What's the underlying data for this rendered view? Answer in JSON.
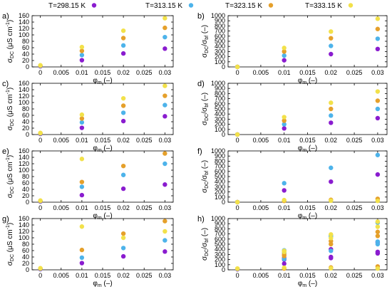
{
  "legend": {
    "entries": [
      {
        "label": "T=298.15 K",
        "color": "#8a1ccf"
      },
      {
        "label": "T=313.15 K",
        "color": "#4db3ea"
      },
      {
        "label": "T=323.15 K",
        "color": "#e5a02b"
      },
      {
        "label": "T=333.15 K",
        "color": "#f2e14a"
      }
    ]
  },
  "chart_data": [
    {
      "panel": "a)",
      "type": "scatter",
      "side": "left",
      "xlabel": {
        "base": "φ",
        "sub": "m",
        "rest": " (–)"
      },
      "ylabel": {
        "p1": "σ",
        "s1": "DC",
        "p2": " (μS cm",
        "sup": "-1",
        "p3": ")"
      },
      "xlim": [
        -0.002,
        0.032
      ],
      "ylim": [
        0,
        160
      ],
      "xticks": [
        "0",
        "0.005",
        "0.01",
        "0.015",
        "0.02",
        "0.025",
        "0.03"
      ],
      "yticks": [
        "0",
        "20",
        "40",
        "60",
        "80",
        "100",
        "120",
        "140",
        "160"
      ],
      "x": [
        0,
        0.01,
        0.02,
        0.03
      ],
      "series": [
        {
          "values": [
            2,
            21,
            42,
            57
          ]
        },
        {
          "values": [
            3,
            37,
            67,
            93
          ]
        },
        {
          "values": [
            4,
            50,
            90,
            122
          ]
        },
        {
          "values": [
            5,
            62,
            113,
            152
          ]
        }
      ]
    },
    {
      "panel": "b)",
      "type": "scatter",
      "side": "right",
      "xlabel": {
        "base": "φ",
        "sub": "m",
        "rest": " (–)"
      },
      "ylabel": {
        "p1": "σ",
        "s1": "DC",
        "p2": "/σ",
        "s2": "bf",
        "p3": " (–)"
      },
      "xlim": [
        -0.002,
        0.032
      ],
      "ylim": [
        0,
        1000
      ],
      "xticks": [
        "0",
        "0.005",
        "0.01",
        "0.015",
        "0.02",
        "0.025",
        "0.03"
      ],
      "yticks": [
        "0",
        "100",
        "200",
        "300",
        "400",
        "500",
        "600",
        "700",
        "800",
        "900",
        "1000"
      ],
      "x": [
        0,
        0.01,
        0.02,
        0.03
      ],
      "series": [
        {
          "values": [
            1,
            130,
            250,
            350
          ]
        },
        {
          "values": [
            1,
            220,
            410,
            550
          ]
        },
        {
          "values": [
            1,
            300,
            560,
            740
          ]
        },
        {
          "values": [
            1,
            370,
            690,
            940
          ]
        }
      ]
    },
    {
      "panel": "c)",
      "type": "scatter",
      "side": "left",
      "xlabel": {
        "base": "φ",
        "sub": "m",
        "rest": " (–)"
      },
      "ylabel": {
        "p1": "σ",
        "s1": "DC",
        "p2": " (μS cm",
        "sup": "-1",
        "p3": ")"
      },
      "xlim": [
        -0.002,
        0.032
      ],
      "ylim": [
        0,
        160
      ],
      "xticks": [
        "0",
        "0.005",
        "0.01",
        "0.015",
        "0.02",
        "0.025",
        "0.03"
      ],
      "yticks": [
        "0",
        "20",
        "40",
        "60",
        "80",
        "100",
        "120",
        "140",
        "160"
      ],
      "x": [
        0,
        0.01,
        0.02,
        0.03
      ],
      "series": [
        {
          "values": [
            2,
            21,
            42,
            57
          ]
        },
        {
          "values": [
            3,
            38,
            68,
            92
          ]
        },
        {
          "values": [
            4,
            50,
            90,
            121
          ]
        },
        {
          "values": [
            5,
            62,
            113,
            152
          ]
        }
      ]
    },
    {
      "panel": "d)",
      "type": "scatter",
      "side": "right",
      "xlabel": {
        "base": "φ",
        "sub": "m",
        "rest": " (–)"
      },
      "ylabel": {
        "p1": "σ",
        "s1": "DC",
        "p2": "/σ",
        "s2": "bf",
        "p3": " (–)"
      },
      "xlim": [
        -0.002,
        0.032
      ],
      "ylim": [
        0,
        1000
      ],
      "xticks": [
        "0",
        "0.005",
        "0.01",
        "0.015",
        "0.02",
        "0.025",
        "0.03"
      ],
      "yticks": [
        "0",
        "100",
        "200",
        "300",
        "400",
        "500",
        "600",
        "700",
        "800",
        "900",
        "1000"
      ],
      "x": [
        0,
        0.01,
        0.02,
        0.03
      ],
      "series": [
        {
          "values": [
            1,
            120,
            230,
            320
          ]
        },
        {
          "values": [
            1,
            200,
            370,
            500
          ]
        },
        {
          "values": [
            1,
            270,
            500,
            660
          ]
        },
        {
          "values": [
            1,
            340,
            620,
            840
          ]
        }
      ]
    },
    {
      "panel": "e)",
      "type": "scatter",
      "side": "left",
      "xlabel": {
        "base": "φ",
        "sub": "m",
        "rest": " (–)"
      },
      "ylabel": {
        "p1": "σ",
        "s1": "DC",
        "p2": " (μS cm",
        "sup": "-1",
        "p3": ")"
      },
      "xlim": [
        -0.002,
        0.032
      ],
      "ylim": [
        0,
        160
      ],
      "xticks": [
        "0",
        "0.005",
        "0.01",
        "0.015",
        "0.02",
        "0.025",
        "0.03"
      ],
      "yticks": [
        "0",
        "20",
        "40",
        "60",
        "80",
        "100",
        "120",
        "140",
        "160"
      ],
      "x": [
        0,
        0.01,
        0.02,
        0.03
      ],
      "series": [
        {
          "values": [
            2,
            22,
            42,
            55
          ]
        },
        {
          "values": [
            3,
            48,
            85,
            120
          ]
        },
        {
          "values": [
            4,
            63,
            113,
            152
          ]
        },
        {
          "values": [
            5,
            135,
            null,
            null
          ]
        }
      ]
    },
    {
      "panel": "f)",
      "type": "scatter",
      "side": "right",
      "xlabel": {
        "base": "φ",
        "sub": "m",
        "rest": " (–)"
      },
      "ylabel": {
        "p1": "σ",
        "s1": "DC",
        "p2": "/σ",
        "s2": "bf",
        "p3": " (–)"
      },
      "xlim": [
        -0.002,
        0.032
      ],
      "ylim": [
        0,
        1000
      ],
      "xticks": [
        "0",
        "0.005",
        "0.01",
        "0.015",
        "0.02",
        "0.025",
        "0.03"
      ],
      "yticks": [
        "0",
        "100",
        "200",
        "300",
        "400",
        "500",
        "600",
        "700",
        "800",
        "900",
        "1000"
      ],
      "x": [
        0,
        0.01,
        0.02,
        0.03
      ],
      "series": [
        {
          "values": [
            1,
            230,
            400,
            540
          ]
        },
        {
          "values": [
            1,
            370,
            670,
            920
          ]
        },
        {
          "values": [
            1,
            25,
            45,
            65
          ]
        },
        {
          "values": [
            1,
            40,
            30,
            25
          ]
        }
      ]
    },
    {
      "panel": "g)",
      "type": "scatter",
      "side": "left",
      "xlabel": {
        "base": "φ",
        "sub": "m",
        "rest": " (–)"
      },
      "ylabel": {
        "p1": "σ",
        "s1": "DC",
        "p2": " (μS cm",
        "sup": "-1",
        "p3": ")"
      },
      "xlim": [
        -0.002,
        0.032
      ],
      "ylim": [
        0,
        160
      ],
      "xticks": [
        "0",
        "0.005",
        "0.01",
        "0.015",
        "0.02",
        "0.025",
        "0.03"
      ],
      "yticks": [
        "0",
        "20",
        "40",
        "60",
        "80",
        "100",
        "120",
        "140",
        "160"
      ],
      "x": [
        0,
        0.01,
        0.02,
        0.03
      ],
      "series": [
        {
          "values": [
            2,
            21,
            42,
            57
          ]
        },
        {
          "values": [
            3,
            38,
            68,
            92
          ]
        },
        {
          "values": [
            4,
            62,
            113,
            152
          ]
        },
        {
          "values": [
            5,
            135,
            100,
            120
          ]
        }
      ]
    },
    {
      "panel": "h)",
      "type": "scatter",
      "side": "right",
      "xlabel": {
        "base": "φ",
        "sub": "m",
        "rest": " (–)"
      },
      "ylabel": {
        "p1": "σ",
        "s1": "DC",
        "p2": "/σ",
        "s2": "bf",
        "p3": " (–)"
      },
      "xlim": [
        -0.002,
        0.032
      ],
      "ylim": [
        0,
        1000
      ],
      "xticks": [
        "0",
        "0.005",
        "0.01",
        "0.015",
        "0.02",
        "0.025",
        "0.03"
      ],
      "yticks": [
        "0",
        "100",
        "200",
        "300",
        "400",
        "500",
        "600",
        "700",
        "800",
        "900",
        "1000"
      ],
      "points": [
        {
          "s": 0,
          "x": 0,
          "y": 10
        },
        {
          "s": 1,
          "x": 0,
          "y": 15
        },
        {
          "s": 2,
          "x": 0,
          "y": 20
        },
        {
          "s": 3,
          "x": 0,
          "y": 25
        },
        {
          "s": 0,
          "x": 0.01,
          "y": 120
        },
        {
          "s": 0,
          "x": 0.01,
          "y": 200
        },
        {
          "s": 0,
          "x": 0.01,
          "y": 230
        },
        {
          "s": 1,
          "x": 0.01,
          "y": 210
        },
        {
          "s": 1,
          "x": 0.01,
          "y": 330
        },
        {
          "s": 1,
          "x": 0.01,
          "y": 380
        },
        {
          "s": 2,
          "x": 0.01,
          "y": 25
        },
        {
          "s": 2,
          "x": 0.01,
          "y": 270
        },
        {
          "s": 2,
          "x": 0.01,
          "y": 300
        },
        {
          "s": 3,
          "x": 0.01,
          "y": 40
        },
        {
          "s": 3,
          "x": 0.01,
          "y": 350
        },
        {
          "s": 3,
          "x": 0.01,
          "y": 370
        },
        {
          "s": 0,
          "x": 0.02,
          "y": 230
        },
        {
          "s": 0,
          "x": 0.02,
          "y": 400
        },
        {
          "s": 0,
          "x": 0.02,
          "y": 250
        },
        {
          "s": 1,
          "x": 0.02,
          "y": 370
        },
        {
          "s": 1,
          "x": 0.02,
          "y": 650
        },
        {
          "s": 1,
          "x": 0.02,
          "y": 670
        },
        {
          "s": 2,
          "x": 0.02,
          "y": 45
        },
        {
          "s": 2,
          "x": 0.02,
          "y": 500
        },
        {
          "s": 2,
          "x": 0.02,
          "y": 560
        },
        {
          "s": 3,
          "x": 0.02,
          "y": 30
        },
        {
          "s": 3,
          "x": 0.02,
          "y": 620
        },
        {
          "s": 3,
          "x": 0.02,
          "y": 690
        },
        {
          "s": 0,
          "x": 0.03,
          "y": 320
        },
        {
          "s": 0,
          "x": 0.03,
          "y": 540
        },
        {
          "s": 0,
          "x": 0.03,
          "y": 350
        },
        {
          "s": 1,
          "x": 0.03,
          "y": 500
        },
        {
          "s": 1,
          "x": 0.03,
          "y": 920
        },
        {
          "s": 1,
          "x": 0.03,
          "y": 550
        },
        {
          "s": 2,
          "x": 0.03,
          "y": 65
        },
        {
          "s": 2,
          "x": 0.03,
          "y": 660
        },
        {
          "s": 2,
          "x": 0.03,
          "y": 740
        },
        {
          "s": 3,
          "x": 0.03,
          "y": 25
        },
        {
          "s": 3,
          "x": 0.03,
          "y": 840
        },
        {
          "s": 3,
          "x": 0.03,
          "y": 940
        }
      ]
    }
  ]
}
